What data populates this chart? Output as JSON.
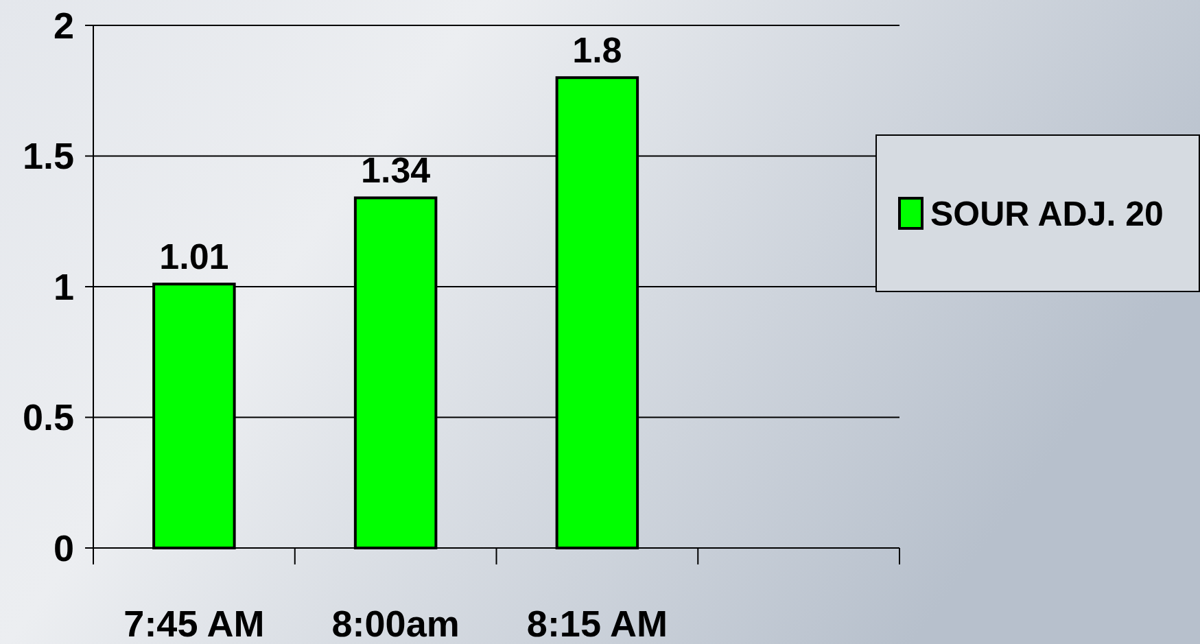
{
  "chart_data": {
    "type": "bar",
    "categories": [
      "7:45 AM",
      "8:00am",
      "8:15 AM",
      null
    ],
    "series": [
      {
        "name": "SOUR ADJ. 20",
        "color": "#00ff00",
        "values": [
          1.01,
          1.34,
          1.8,
          null
        ]
      }
    ],
    "ylim": [
      0,
      2
    ],
    "yticks": [
      0,
      0.5,
      1,
      1.5,
      2
    ],
    "grid": "y",
    "legend": "right",
    "data_labels": true
  }
}
